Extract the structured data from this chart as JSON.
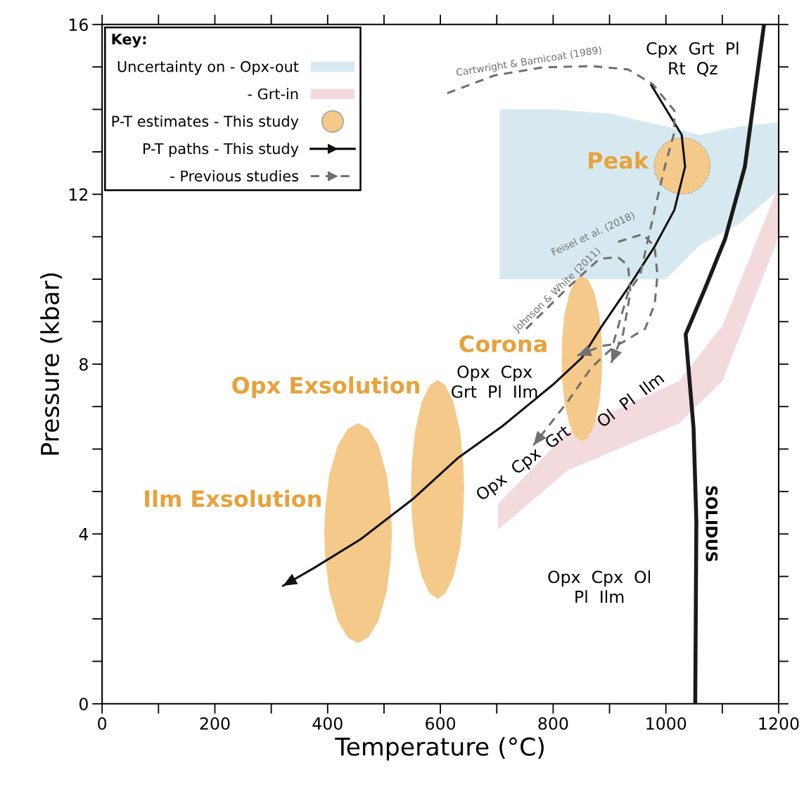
{
  "chart_data": {
    "type": "line",
    "xlabel": "Temperature (°C)",
    "ylabel": "Pressure (kbar)",
    "legend_title": "Key:",
    "legend": "top left",
    "grid": false,
    "xlim": [
      0,
      1200
    ],
    "ylim": [
      0,
      16
    ],
    "xticks": [
      0,
      {
        "value": 100,
        "label": null
      },
      200,
      {
        "value": 300,
        "label": null
      },
      400,
      {
        "value": 500,
        "label": null
      },
      600,
      {
        "value": 700,
        "label": null
      },
      800,
      {
        "value": 900,
        "label": null
      },
      1000,
      {
        "value": 1100,
        "label": null
      },
      1200
    ],
    "yticks": [
      0,
      {
        "value": 1,
        "label": null
      },
      {
        "value": 2,
        "label": null
      },
      {
        "value": 3,
        "label": null
      },
      4,
      {
        "value": 5,
        "label": null
      },
      {
        "value": 6,
        "label": null
      },
      {
        "value": 7,
        "label": null
      },
      8,
      {
        "value": 9,
        "label": null
      },
      {
        "value": 10,
        "label": null
      },
      {
        "value": 11,
        "label": null
      },
      12,
      {
        "value": 13,
        "label": null
      },
      {
        "value": 14,
        "label": null
      },
      {
        "value": 15,
        "label": null
      },
      16
    ],
    "series": [
      {
        "type": "area",
        "name": "Uncertainty on - Opx-out",
        "color": "#d7e9f0",
        "x": [
          705,
          800,
          900,
          1000,
          1060,
          1130,
          1200
        ],
        "values": [
          null,
          null,
          null,
          null,
          null,
          null,
          null
        ],
        "lower": [
          10.0,
          10.0,
          10.0,
          10.0,
          10.8,
          11.3,
          12.1
        ],
        "upper": [
          14.0,
          14.0,
          13.9,
          13.6,
          13.4,
          13.6,
          13.7
        ]
      },
      {
        "type": "area",
        "name": "- Grt-in",
        "color": "#f3dadd",
        "x": [
          702,
          826,
          1023,
          1100,
          1200
        ],
        "values": [
          null,
          null,
          null,
          null,
          null
        ],
        "lower": [
          4.1,
          5.5,
          6.6,
          7.6,
          11.0
        ],
        "upper": [
          4.7,
          6.4,
          7.6,
          8.9,
          12.2
        ]
      },
      {
        "type": "area",
        "name": "P-T estimates - This study",
        "marker": "circle",
        "color": "#f5c98a",
        "x": [
          979,
          980.5,
          986.5,
          999,
          1014,
          1029,
          1044,
          1059,
          1071.5,
          1077.5,
          1079
        ],
        "values": [
          null,
          null,
          null,
          null,
          null,
          null,
          null,
          null,
          null,
          null,
          null
        ],
        "lower": [
          12.67,
          12.51,
          12.32,
          12.13,
          12.03,
          12.0,
          12.03,
          12.13,
          12.32,
          12.51,
          12.67
        ],
        "upper": [
          12.67,
          12.83,
          13.02,
          13.21,
          13.31,
          13.34,
          13.31,
          13.21,
          13.02,
          12.83,
          12.67
        ]
      },
      {
        "type": "area",
        "color": "#f5c98a",
        "x": [
          815,
          816,
          820,
          829,
          840,
          851,
          862,
          873,
          882,
          886,
          887
        ],
        "values": [
          null,
          null,
          null,
          null,
          null,
          null,
          null,
          null,
          null,
          null,
          null
        ],
        "lower": [
          8.13,
          7.66,
          7.1,
          6.57,
          6.28,
          6.18,
          6.28,
          6.57,
          7.1,
          7.66,
          8.13
        ],
        "upper": [
          8.13,
          8.6,
          9.16,
          9.69,
          9.98,
          10.08,
          9.98,
          9.69,
          9.16,
          8.6,
          8.13
        ]
      },
      {
        "type": "area",
        "color": "#f5c98a",
        "x": [
          548,
          549.4,
          555,
          567,
          581,
          595,
          609,
          623,
          635,
          640.6,
          642
        ],
        "values": [
          null,
          null,
          null,
          null,
          null,
          null,
          null,
          null,
          null,
          null,
          null
        ],
        "lower": [
          5.05,
          4.43,
          3.68,
          2.99,
          2.6,
          2.47,
          2.6,
          2.99,
          3.68,
          4.43,
          5.05
        ],
        "upper": [
          5.05,
          5.67,
          6.42,
          7.11,
          7.5,
          7.63,
          7.5,
          7.11,
          6.42,
          5.67,
          5.05
        ]
      },
      {
        "type": "area",
        "color": "#f5c98a",
        "x": [
          394,
          396,
          403,
          418,
          436,
          454,
          472,
          490,
          505,
          512,
          514
        ],
        "values": [
          null,
          null,
          null,
          null,
          null,
          null,
          null,
          null,
          null,
          null,
          null
        ],
        "lower": [
          4.02,
          3.4,
          2.65,
          1.95,
          1.56,
          1.43,
          1.56,
          1.95,
          2.65,
          3.4,
          4.02
        ],
        "upper": [
          4.02,
          4.64,
          5.39,
          6.09,
          6.48,
          6.61,
          6.48,
          6.09,
          5.39,
          4.64,
          4.02
        ]
      },
      {
        "color": "#1a1a1a",
        "x": [
          1052,
          1054,
          1049,
          1035,
          1070,
          1105,
          1140,
          1174
        ],
        "values": [
          0,
          4.3,
          6.5,
          8.7,
          9.8,
          10.95,
          12.65,
          16
        ]
      },
      {
        "name": "P-T paths - This study",
        "color": "#111111",
        "line_style": "solid",
        "x": [
          974,
          1028,
          1034,
          1015,
          980,
          933,
          886,
          851,
          800,
          710,
          632,
          551,
          459,
          376,
          321
        ],
        "values": [
          14.57,
          13.4,
          12.65,
          11.63,
          10.77,
          9.8,
          8.89,
          8.15,
          7.52,
          6.54,
          5.8,
          4.82,
          3.88,
          3.2,
          2.78
        ]
      },
      {
        "name": "- Previous studies",
        "color": "#707070",
        "line_style": "dashed",
        "x": [
          612,
          696,
          782,
          868,
          933,
          976,
          1015,
          1015,
          998,
          980,
          954,
          933,
          904,
          868,
          826,
          765,
          null,
          915,
          959,
          980,
          985,
          980,
          963,
          920,
          886,
          843,
          null,
          752,
          826,
          882,
          915,
          933,
          937,
          924,
          903
        ],
        "values": [
          14.38,
          14.8,
          14.99,
          15.02,
          14.94,
          14.6,
          13.97,
          13.46,
          12.65,
          11.63,
          10.09,
          9.69,
          8.37,
          7.92,
          7.12,
          6.09,
          null,
          10.88,
          11.06,
          10.77,
          10.09,
          9.41,
          8.83,
          8.49,
          8.43,
          8.2,
          null,
          8.83,
          9.8,
          10.48,
          10.52,
          10.32,
          9.69,
          8.71,
          8.03
        ]
      }
    ],
    "annotations": [
      "Cpx  Grt  Pl\nRt  Qz",
      "Opx  Cpx\nGrt  Pl  Ilm",
      "Opx  Cpx  Grt",
      "Ol  Pl  Ilm",
      "Opx  Cpx  Ol\nPl  Ilm",
      "SOLIDUS",
      "Peak",
      "Corona",
      "Opx Exsolution",
      "Ilm Exsolution",
      "Cartwright & Barnicoat (1989)",
      "Feisel et al. (2018)",
      "Johnson & White (2011)"
    ]
  }
}
